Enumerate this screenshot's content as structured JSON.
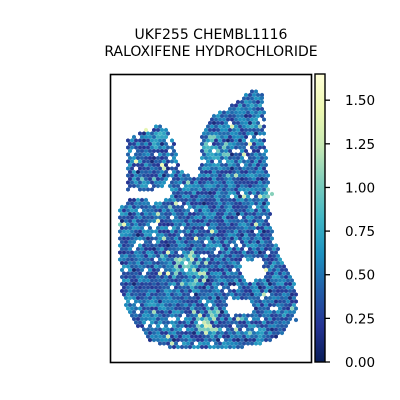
{
  "chart_data": {
    "type": "scatter",
    "title_line1": "UKF255 CHEMBL1116",
    "title_line2": "RALOXIFENE HYDROCHLORIDE",
    "xlabel": "",
    "ylabel": "",
    "grid": false,
    "colorbar": {
      "min": 0.0,
      "max": 1.65,
      "ticks": [
        {
          "value": 0.0,
          "label": "0.00"
        },
        {
          "value": 0.25,
          "label": "0.25"
        },
        {
          "value": 0.5,
          "label": "0.50"
        },
        {
          "value": 0.75,
          "label": "0.75"
        },
        {
          "value": 1.0,
          "label": "1.00"
        },
        {
          "value": 1.25,
          "label": "1.25"
        },
        {
          "value": 1.5,
          "label": "1.50"
        }
      ],
      "colormap": [
        "#081d58",
        "#253494",
        "#225ea8",
        "#1d91c0",
        "#41b6c4",
        "#7fcdbb",
        "#c7e9b4",
        "#edf8b1",
        "#ffffd9"
      ],
      "location": "right"
    },
    "spots": {
      "marker": "hexagon",
      "typical_value": 0.45,
      "region": "tissue section shaped like a map outline inside the axes"
    }
  }
}
